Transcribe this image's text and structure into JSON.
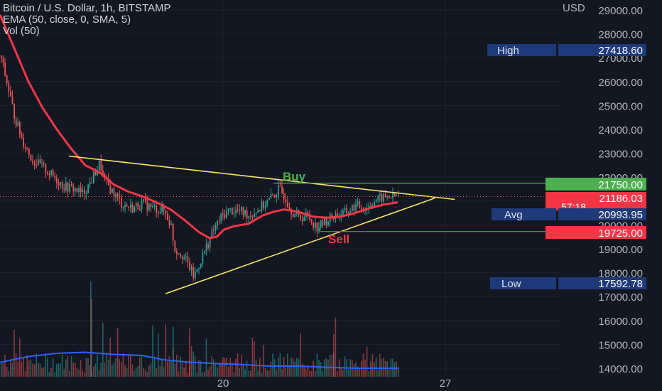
{
  "legend": {
    "title": "Bitcoin / U.S. Dollar, 1h, BITSTAMP",
    "ema": "EMA (50, close, 0, SMA, 5)",
    "vol": "Vol (50)"
  },
  "currency": "USD",
  "chart_data": {
    "type": "candlestick",
    "symbol": "Bitcoin / U.S. Dollar",
    "interval": "1h",
    "exchange": "BITSTAMP",
    "y_ticks": [
      29000,
      28000,
      27000,
      26000,
      25000,
      24000,
      23000,
      22000,
      21000,
      20000,
      19000,
      18000,
      17000,
      16000,
      15000,
      14000
    ],
    "ylim": [
      13700,
      29500
    ],
    "x_ticks": [
      "20",
      "27"
    ],
    "price_labels": {
      "high": {
        "label": "High",
        "value": "27418.60"
      },
      "avg": {
        "label": "Avg",
        "value": "20993.95"
      },
      "low": {
        "label": "Low",
        "value": "17592.78"
      },
      "current": {
        "value": "21186.03",
        "countdown": "57:18"
      },
      "buy_level": {
        "value": "21750.00"
      },
      "sell_level": {
        "value": "19725.00"
      }
    },
    "annotations": [
      {
        "text": "Buy",
        "color": "#4caf50"
      },
      {
        "text": "Sell",
        "color": "#f23645"
      }
    ],
    "close_path": [
      [
        0,
        27100
      ],
      [
        10,
        25800
      ],
      [
        20,
        24500
      ],
      [
        30,
        23600
      ],
      [
        45,
        22700
      ],
      [
        60,
        22400
      ],
      [
        75,
        22000
      ],
      [
        90,
        21600
      ],
      [
        105,
        21500
      ],
      [
        115,
        21300
      ],
      [
        125,
        21700
      ],
      [
        135,
        22300
      ],
      [
        140,
        22600
      ],
      [
        145,
        21900
      ],
      [
        155,
        21500
      ],
      [
        170,
        20900
      ],
      [
        185,
        20700
      ],
      [
        200,
        20900
      ],
      [
        215,
        20700
      ],
      [
        230,
        20600
      ],
      [
        240,
        20000
      ],
      [
        245,
        19000
      ],
      [
        255,
        18800
      ],
      [
        265,
        18300
      ],
      [
        272,
        17800
      ],
      [
        280,
        18400
      ],
      [
        290,
        19100
      ],
      [
        300,
        19800
      ],
      [
        310,
        20300
      ],
      [
        320,
        20600
      ],
      [
        335,
        20600
      ],
      [
        350,
        20400
      ],
      [
        365,
        20700
      ],
      [
        380,
        21100
      ],
      [
        392,
        21500
      ],
      [
        400,
        21200
      ],
      [
        410,
        20600
      ],
      [
        420,
        20300
      ],
      [
        432,
        20400
      ],
      [
        445,
        19900
      ],
      [
        455,
        20100
      ],
      [
        470,
        20400
      ],
      [
        485,
        20500
      ],
      [
        500,
        20800
      ],
      [
        515,
        20700
      ],
      [
        525,
        21000
      ],
      [
        535,
        21100
      ],
      [
        545,
        21200
      ],
      [
        555,
        21200
      ],
      [
        560,
        21186
      ]
    ],
    "ema_path": [
      [
        0,
        28800
      ],
      [
        20,
        27400
      ],
      [
        40,
        26000
      ],
      [
        60,
        24900
      ],
      [
        80,
        24000
      ],
      [
        100,
        23200
      ],
      [
        120,
        22500
      ],
      [
        140,
        22200
      ],
      [
        160,
        21700
      ],
      [
        180,
        21400
      ],
      [
        200,
        21200
      ],
      [
        220,
        20950
      ],
      [
        240,
        20650
      ],
      [
        260,
        20200
      ],
      [
        280,
        19700
      ],
      [
        295,
        19450
      ],
      [
        305,
        19500
      ],
      [
        315,
        19800
      ],
      [
        330,
        19950
      ],
      [
        350,
        20050
      ],
      [
        370,
        20400
      ],
      [
        385,
        20550
      ],
      [
        400,
        20650
      ],
      [
        420,
        20550
      ],
      [
        440,
        20350
      ],
      [
        460,
        20300
      ],
      [
        480,
        20350
      ],
      [
        500,
        20500
      ],
      [
        520,
        20700
      ],
      [
        540,
        20850
      ],
      [
        560,
        20950
      ]
    ],
    "trendlines": [
      {
        "name": "upper",
        "from": [
          97,
          22880
        ],
        "to": [
          640,
          21070
        ]
      },
      {
        "name": "lower",
        "from": [
          233,
          17120
        ],
        "to": [
          612,
          21120
        ]
      }
    ],
    "horizontal_levels": [
      {
        "name": "buy",
        "price": 21750,
        "x_from": 385
      },
      {
        "name": "sell",
        "price": 19725,
        "x_from": 450
      }
    ],
    "volume_ma_line": [
      [
        0,
        73
      ],
      [
        40,
        62
      ],
      [
        80,
        56
      ],
      [
        120,
        54
      ],
      [
        160,
        58
      ],
      [
        200,
        60
      ],
      [
        230,
        68
      ],
      [
        260,
        72
      ],
      [
        300,
        75
      ],
      [
        340,
        77
      ],
      [
        380,
        80
      ],
      [
        420,
        80
      ],
      [
        460,
        82
      ],
      [
        500,
        84
      ],
      [
        560,
        84
      ]
    ]
  }
}
